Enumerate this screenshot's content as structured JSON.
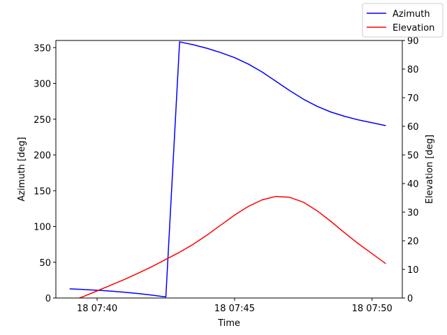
{
  "chart_data": {
    "type": "line",
    "xlabel": "Time",
    "ylabel_left": "Azimuth [deg]",
    "ylabel_right": "Elevation [deg]",
    "x_ticks": [
      "18 07:40",
      "18 07:45",
      "18 07:50"
    ],
    "x_tick_minutes": [
      40,
      45,
      50
    ],
    "x_range_minutes": [
      38.5,
      51.1
    ],
    "left_ylim": [
      0,
      360
    ],
    "left_ticks": [
      "0",
      "50",
      "100",
      "150",
      "200",
      "250",
      "300",
      "350"
    ],
    "right_ylim": [
      0,
      90
    ],
    "right_ticks": [
      "0",
      "10",
      "20",
      "30",
      "40",
      "50",
      "60",
      "70",
      "80",
      "90"
    ],
    "grid": false,
    "legend_placement": "top-right",
    "legend": [
      "Azimuth",
      "Elevation"
    ],
    "colors": {
      "Azimuth": "#0000ff",
      "Elevation": "#ff0000"
    },
    "x_minutes": [
      39.0,
      39.5,
      40.0,
      40.5,
      41.0,
      41.5,
      42.0,
      42.5,
      43.0,
      43.5,
      44.0,
      44.5,
      45.0,
      45.5,
      46.0,
      46.5,
      47.0,
      47.5,
      48.0,
      48.5,
      49.0,
      49.5,
      50.0,
      50.5
    ],
    "series": [
      {
        "name": "Azimuth",
        "axis": "left",
        "values": [
          12.8,
          11.9,
          10.8,
          9.6,
          8.1,
          6.2,
          4.0,
          1.5,
          358.0,
          354.0,
          349.0,
          343.0,
          336.0,
          327.0,
          316.0,
          303.0,
          290.0,
          278.0,
          268.0,
          260.0,
          254.0,
          249.0,
          245.0,
          241.0
        ]
      },
      {
        "name": "Elevation",
        "axis": "right",
        "values": [
          -1.2,
          0.5,
          2.5,
          4.5,
          6.5,
          8.7,
          11.0,
          13.5,
          16.0,
          18.8,
          22.0,
          25.5,
          29.0,
          32.0,
          34.3,
          35.5,
          35.2,
          33.5,
          30.5,
          26.8,
          22.8,
          19.0,
          15.5,
          12.0
        ]
      }
    ]
  }
}
